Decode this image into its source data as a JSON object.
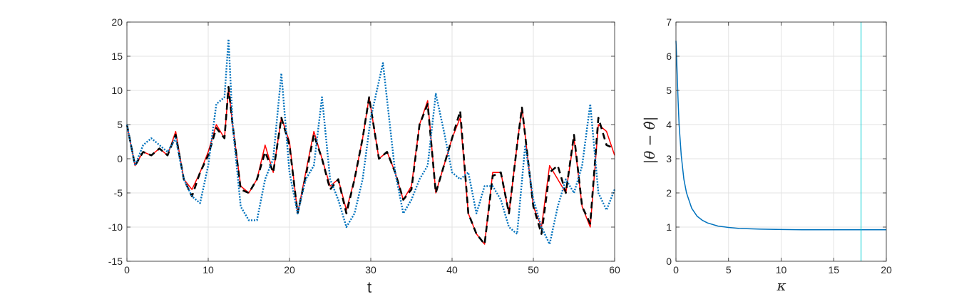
{
  "chart_data": [
    {
      "type": "line",
      "xlabel": "t",
      "ylabel": "",
      "xlim": [
        0,
        60
      ],
      "ylim": [
        -15,
        20
      ],
      "xticks": [
        "0",
        "10",
        "20",
        "30",
        "40",
        "50",
        "60"
      ],
      "yticks": [
        "-15",
        "-10",
        "-5",
        "0",
        "5",
        "10",
        "15",
        "20"
      ],
      "xtick_values": [
        0,
        10,
        20,
        30,
        40,
        50,
        60
      ],
      "ytick_values": [
        -15,
        -10,
        -5,
        0,
        5,
        10,
        15,
        20
      ],
      "grid": true,
      "series": [
        {
          "color": "#ff0000",
          "style": "solid",
          "x": [
            0,
            1,
            2,
            3,
            4,
            5,
            6,
            7,
            8,
            9,
            10,
            11,
            12,
            12.5,
            13,
            14,
            15,
            16,
            17,
            18,
            19,
            20,
            21,
            22,
            23,
            24,
            25,
            26,
            27,
            28,
            29,
            29.8,
            31,
            32,
            33,
            34,
            35,
            36,
            37,
            38,
            39,
            40,
            41,
            42,
            43,
            44,
            45,
            46,
            47,
            48,
            48.6,
            50,
            51,
            52,
            53,
            54,
            55,
            56,
            57,
            58,
            59,
            60
          ],
          "y": [
            5,
            -1,
            1,
            0.5,
            1.5,
            0.5,
            4,
            -3,
            -4.5,
            -2,
            1,
            5,
            3,
            10.3,
            5,
            -4,
            -5,
            -3,
            2,
            -2,
            6,
            2.5,
            -8,
            -2,
            4,
            0,
            -4,
            -3,
            -7.5,
            -3,
            3,
            9,
            0,
            1,
            -2,
            -6,
            -4,
            5,
            8.5,
            -5,
            -1,
            3,
            6,
            -8,
            -11,
            -12.5,
            -2,
            -2,
            -8,
            2,
            7.5,
            -7,
            -10,
            -1,
            -3,
            -5,
            3,
            -7,
            -10,
            5,
            4,
            0.5
          ]
        },
        {
          "color": "#000000",
          "style": "dashed",
          "x": [
            0,
            1,
            2,
            3,
            4,
            5,
            6,
            7,
            8,
            9,
            10,
            11,
            12,
            12.5,
            13,
            14,
            15,
            16,
            17,
            18,
            19,
            20,
            21,
            22,
            23,
            24,
            25,
            26,
            27,
            28,
            29,
            29.8,
            31,
            32,
            33,
            34,
            35,
            36,
            37,
            38,
            39,
            40,
            41,
            42,
            43,
            44,
            45,
            46,
            47,
            48,
            48.6,
            50,
            51,
            52,
            53,
            54,
            55,
            56,
            57,
            58,
            59,
            60
          ],
          "y": [
            5,
            -1,
            1,
            0.5,
            1.5,
            0.5,
            3.5,
            -3,
            -5.5,
            -2,
            0.5,
            4.5,
            3,
            10.5,
            5,
            -4.5,
            -5,
            -3,
            1,
            -2,
            6,
            2,
            -8,
            -2.5,
            3.5,
            0,
            -4.5,
            -3,
            -8,
            -3,
            3,
            9,
            0,
            1,
            -2,
            -6,
            -4.5,
            5,
            8,
            -5,
            -1,
            3,
            7,
            -8,
            -11,
            -12.5,
            -2.5,
            -2,
            -8,
            2,
            7.5,
            -7,
            -11,
            -2,
            -1,
            -5,
            3.5,
            -7,
            -9.5,
            6,
            2,
            1.5
          ]
        },
        {
          "color": "#0072bd",
          "style": "dotted",
          "x": [
            0,
            1,
            2,
            3,
            4,
            5,
            6,
            7,
            8,
            9,
            10,
            11,
            12,
            12.5,
            13,
            14,
            15,
            16,
            17,
            18,
            19,
            20,
            21,
            22,
            23,
            24,
            25,
            26,
            27,
            28,
            29,
            30,
            31.5,
            33,
            34,
            35,
            36,
            37,
            38,
            39,
            40,
            41,
            42,
            43,
            44,
            45,
            46,
            47,
            48,
            49,
            50,
            51,
            52,
            53,
            54,
            55,
            56,
            57,
            58,
            59,
            60
          ],
          "y": [
            5,
            -1,
            2,
            3,
            2,
            1,
            3,
            -3,
            -5.5,
            -6.5,
            -1,
            8,
            9,
            17.5,
            5,
            -7,
            -9,
            -9,
            -3,
            0,
            12.5,
            -2,
            -8,
            -3,
            -1,
            9,
            -3,
            -6,
            -10,
            -8,
            -3,
            6,
            14,
            -2,
            -8,
            -6,
            -3,
            -1,
            9.5,
            4,
            -2,
            -3,
            -2,
            -8,
            -4,
            -4,
            -6,
            -10,
            -11,
            2,
            -6,
            -10,
            -12.5,
            -7,
            -3,
            -5,
            -1,
            8,
            -5,
            -7.5,
            -4.5
          ]
        }
      ]
    },
    {
      "type": "line",
      "xlabel": "κ",
      "ylabel": "|θ − θ̂|",
      "xlim": [
        0,
        20
      ],
      "ylim": [
        0,
        7
      ],
      "xticks": [
        "0",
        "5",
        "10",
        "15",
        "20"
      ],
      "yticks": [
        "0",
        "1",
        "2",
        "3",
        "4",
        "5",
        "6",
        "7"
      ],
      "xtick_values": [
        0,
        5,
        10,
        15,
        20
      ],
      "ytick_values": [
        0,
        1,
        2,
        3,
        4,
        5,
        6,
        7
      ],
      "grid": true,
      "vline_x": 17.6,
      "vline_color": "#00ced1",
      "series": [
        {
          "color": "#0072bd",
          "style": "solid",
          "x": [
            0,
            0.05,
            0.1,
            0.2,
            0.3,
            0.5,
            0.75,
            1,
            1.5,
            2,
            2.5,
            3,
            4,
            5,
            6,
            8,
            10,
            12,
            15,
            20
          ],
          "y": [
            6.45,
            6.1,
            5.6,
            4.7,
            4.0,
            3.1,
            2.4,
            2.0,
            1.55,
            1.32,
            1.2,
            1.12,
            1.03,
            0.99,
            0.96,
            0.94,
            0.93,
            0.92,
            0.92,
            0.92
          ]
        }
      ]
    }
  ]
}
